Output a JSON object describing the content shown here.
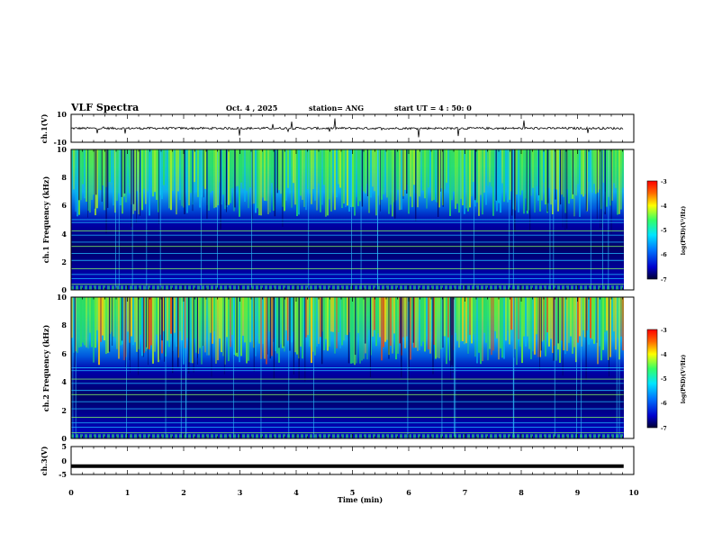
{
  "header": {
    "title": "VLF Spectra",
    "date": "Oct. 4 , 2025",
    "station": "station= ANG",
    "start_ut": "start UT = 4 : 50: 0"
  },
  "chart_data": {
    "type": "heatmap",
    "xlabel": "Time (min)",
    "xlim": [
      0,
      10
    ],
    "x_ticks": [
      "0",
      "1",
      "2",
      "3",
      "4",
      "5",
      "6",
      "7",
      "8",
      "9",
      "10"
    ],
    "panels": [
      {
        "id": "ch1-waveform",
        "type": "line",
        "ylabel": "ch.1(V)",
        "ylim": [
          -10,
          10
        ],
        "y_ticks": [
          "10",
          "-10"
        ],
        "baseline": 0,
        "data_end_min": 9.82
      },
      {
        "id": "ch1-spectrogram",
        "type": "heatmap",
        "ylabel": "ch.1 Frequency (kHz)",
        "ylim": [
          0,
          10
        ],
        "y_ticks": [
          "0",
          "2",
          "4",
          "6",
          "8",
          "10"
        ],
        "data_end_min": 9.82,
        "colorbar": {
          "label": "log(PSD)(V²/Hz)",
          "range": [
            -7,
            -3
          ],
          "ticks": [
            "-3",
            "-4",
            "-5",
            "-6",
            "-7"
          ]
        }
      },
      {
        "id": "ch2-spectrogram",
        "type": "heatmap",
        "ylabel": "ch.2 Frequency (kHz)",
        "ylim": [
          0,
          10
        ],
        "y_ticks": [
          "0",
          "2",
          "4",
          "6",
          "8",
          "10"
        ],
        "data_end_min": 9.82,
        "colorbar": {
          "label": "log(PSD)(V²/Hz)",
          "range": [
            -7,
            -3
          ],
          "ticks": [
            "-3",
            "-4",
            "-5",
            "-6",
            "-7"
          ]
        }
      },
      {
        "id": "ch3-waveform",
        "type": "line",
        "ylabel": "ch.3(V)",
        "ylim": [
          -5,
          5
        ],
        "y_ticks": [
          "5",
          "0",
          "-5"
        ],
        "baseline": -2,
        "data_end_min": 9.82
      }
    ]
  }
}
